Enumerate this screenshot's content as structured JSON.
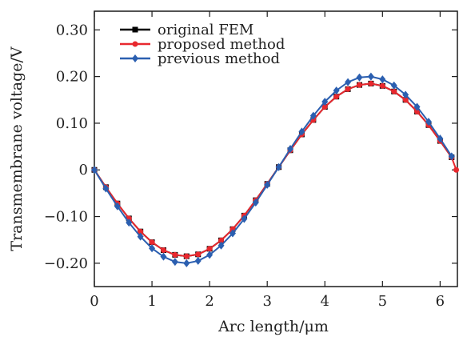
{
  "chart_data": {
    "type": "line",
    "title": "",
    "xlabel": "Arc length/μm",
    "ylabel": "Transmembrane voltage/V",
    "xlim": [
      0,
      6.3
    ],
    "ylim": [
      -0.25,
      0.34
    ],
    "xticks": [
      0,
      1,
      2,
      3,
      4,
      5,
      6
    ],
    "xtick_labels": [
      "0",
      "1",
      "2",
      "3",
      "4",
      "5",
      "6"
    ],
    "yticks": [
      0.3,
      0.2,
      0.1,
      0,
      -0.1,
      -0.2
    ],
    "ytick_labels": [
      "0.30",
      "0.20",
      "0.10",
      "0",
      "−0.10",
      "−0.20"
    ],
    "grid": false,
    "legend_position": "top-left",
    "series": [
      {
        "name": "original FEM",
        "color": "#000000",
        "marker": "square",
        "x": [
          0,
          0.2,
          0.4,
          0.6,
          0.8,
          1.0,
          1.2,
          1.4,
          1.6,
          1.8,
          2.0,
          2.2,
          2.4,
          2.6,
          2.8,
          3.0,
          3.2,
          3.4,
          3.6,
          3.8,
          4.0,
          4.2,
          4.4,
          4.6,
          4.8,
          5.0,
          5.2,
          5.4,
          5.6,
          5.8,
          6.0,
          6.2
        ],
        "y": [
          0,
          -0.037,
          -0.072,
          -0.104,
          -0.132,
          -0.155,
          -0.172,
          -0.182,
          -0.185,
          -0.181,
          -0.169,
          -0.151,
          -0.127,
          -0.098,
          -0.065,
          -0.03,
          0.006,
          0.042,
          0.076,
          0.107,
          0.135,
          0.157,
          0.173,
          0.182,
          0.185,
          0.18,
          0.168,
          0.15,
          0.125,
          0.096,
          0.062,
          0.027
        ]
      },
      {
        "name": "proposed method",
        "color": "#e8282e",
        "marker": "circle",
        "x": [
          0,
          0.2,
          0.4,
          0.6,
          0.8,
          1.0,
          1.2,
          1.4,
          1.6,
          1.8,
          2.0,
          2.2,
          2.4,
          2.6,
          2.8,
          3.0,
          3.2,
          3.4,
          3.6,
          3.8,
          4.0,
          4.2,
          4.4,
          4.6,
          4.8,
          5.0,
          5.2,
          5.4,
          5.6,
          5.8,
          6.0,
          6.2,
          6.28
        ],
        "y": [
          0,
          -0.037,
          -0.072,
          -0.104,
          -0.132,
          -0.155,
          -0.172,
          -0.182,
          -0.185,
          -0.181,
          -0.169,
          -0.151,
          -0.127,
          -0.098,
          -0.065,
          -0.03,
          0.006,
          0.042,
          0.076,
          0.107,
          0.135,
          0.157,
          0.173,
          0.182,
          0.185,
          0.18,
          0.168,
          0.15,
          0.125,
          0.096,
          0.062,
          0.027,
          0
        ]
      },
      {
        "name": "previous method",
        "color": "#2b5fb0",
        "marker": "diamond",
        "x": [
          0,
          0.2,
          0.4,
          0.6,
          0.8,
          1.0,
          1.2,
          1.4,
          1.6,
          1.8,
          2.0,
          2.2,
          2.4,
          2.6,
          2.8,
          3.0,
          3.2,
          3.4,
          3.6,
          3.8,
          4.0,
          4.2,
          4.4,
          4.6,
          4.8,
          5.0,
          5.2,
          5.4,
          5.6,
          5.8,
          6.0,
          6.2
        ],
        "y": [
          0,
          -0.04,
          -0.078,
          -0.113,
          -0.143,
          -0.168,
          -0.186,
          -0.197,
          -0.2,
          -0.195,
          -0.182,
          -0.162,
          -0.136,
          -0.105,
          -0.07,
          -0.032,
          0.006,
          0.045,
          0.082,
          0.116,
          0.146,
          0.17,
          0.188,
          0.198,
          0.2,
          0.194,
          0.181,
          0.161,
          0.135,
          0.103,
          0.067,
          0.029
        ]
      }
    ]
  }
}
